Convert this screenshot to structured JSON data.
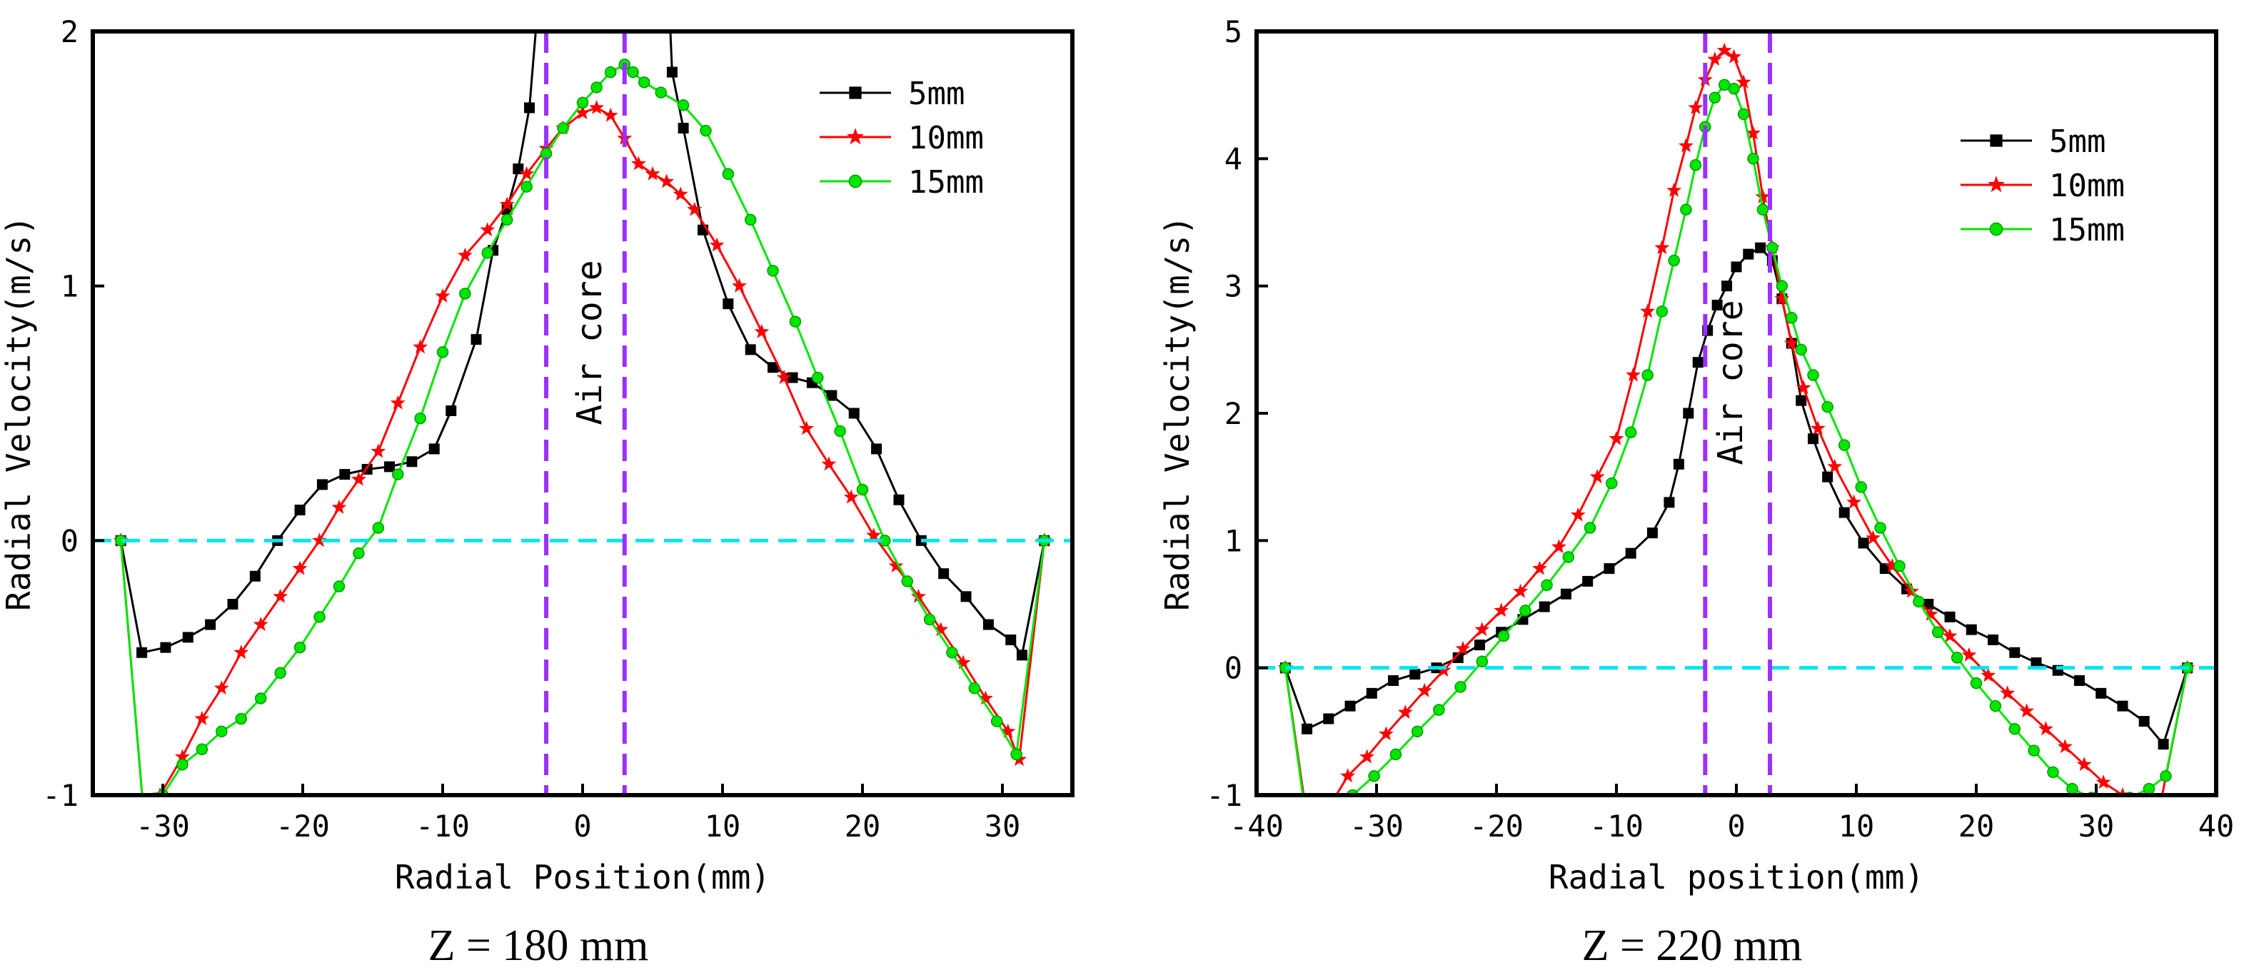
{
  "colors": {
    "series_5mm": "#000000",
    "series_10mm": "#ff0000",
    "series_15mm": "#00e600",
    "zero_line": "#00e5ee",
    "air_core_lines": "#9b30ff"
  },
  "chart_data": [
    {
      "type": "line",
      "caption": "Z = 180 mm",
      "xlabel": "Radial Position(mm)",
      "ylabel": "Radial Velocity(m/s)",
      "xlim": [
        -35,
        35
      ],
      "ylim": [
        -1,
        2
      ],
      "xticks": [
        -30,
        -20,
        -10,
        0,
        10,
        20,
        30
      ],
      "yticks": [
        -1,
        0,
        1,
        2
      ],
      "grid": false,
      "legend_position": "top-right",
      "annotation": "Air core",
      "reference_lines": {
        "zero_y": 0,
        "air_core_x": [
          -2.6,
          3.0
        ]
      },
      "series": [
        {
          "name": "5mm",
          "marker": "square",
          "x": [
            -33,
            -31.5,
            -29.8,
            -28.2,
            -26.6,
            -25,
            -23.4,
            -21.8,
            -20.2,
            -18.6,
            -17,
            -15.4,
            -13.8,
            -12.2,
            -10.6,
            -9.4,
            -7.6,
            -6.4,
            -5.4,
            -4.6,
            -3.8,
            -3.2,
            -2.6,
            5.8,
            6.4,
            7.2,
            8.6,
            10.4,
            12,
            13.6,
            15,
            16.4,
            17.8,
            19.4,
            21,
            22.6,
            24.2,
            25.8,
            27.4,
            29,
            30.6,
            31.4,
            33
          ],
          "y": [
            0,
            -0.44,
            -0.42,
            -0.38,
            -0.33,
            -0.25,
            -0.14,
            0,
            0.12,
            0.22,
            0.26,
            0.28,
            0.29,
            0.31,
            0.36,
            0.51,
            0.79,
            1.14,
            1.3,
            1.46,
            1.7,
            2.1,
            2.6,
            2.6,
            1.84,
            1.62,
            1.22,
            0.93,
            0.75,
            0.68,
            0.64,
            0.62,
            0.57,
            0.5,
            0.36,
            0.16,
            0,
            -0.13,
            -0.22,
            -0.33,
            -0.39,
            -0.45,
            0
          ]
        },
        {
          "name": "10mm",
          "marker": "star",
          "x": [
            -33,
            -31.4,
            -30.2,
            -28.6,
            -27.2,
            -25.8,
            -24.4,
            -23,
            -21.6,
            -20.2,
            -18.8,
            -17.4,
            -16,
            -14.6,
            -13.2,
            -11.6,
            -10,
            -8.4,
            -6.8,
            -5.4,
            -4,
            -2.6,
            -1.4,
            0,
            1,
            2,
            3,
            4,
            5,
            6,
            7,
            8,
            9.6,
            11.2,
            12.8,
            14.4,
            16,
            17.6,
            19.2,
            20.8,
            22.4,
            24,
            25.6,
            27.2,
            28.8,
            30.4,
            31.2,
            33
          ],
          "y": [
            0,
            -1.05,
            -1.0,
            -0.85,
            -0.7,
            -0.58,
            -0.44,
            -0.33,
            -0.22,
            -0.11,
            0,
            0.13,
            0.24,
            0.35,
            0.54,
            0.76,
            0.96,
            1.12,
            1.22,
            1.32,
            1.44,
            1.54,
            1.62,
            1.68,
            1.7,
            1.67,
            1.58,
            1.48,
            1.44,
            1.41,
            1.36,
            1.3,
            1.16,
            1.0,
            0.82,
            0.64,
            0.44,
            0.3,
            0.17,
            0.02,
            -0.1,
            -0.22,
            -0.35,
            -0.48,
            -0.62,
            -0.75,
            -0.86,
            0
          ]
        },
        {
          "name": "15mm",
          "marker": "circle",
          "x": [
            -33,
            -31.4,
            -30,
            -28.6,
            -27.2,
            -25.8,
            -24.4,
            -23,
            -21.6,
            -20.2,
            -18.8,
            -17.4,
            -16,
            -14.6,
            -13.2,
            -11.6,
            -10,
            -8.4,
            -6.8,
            -5.4,
            -4,
            -2.6,
            -1.4,
            0,
            1,
            2,
            3,
            3.6,
            4.4,
            5.6,
            7.2,
            8.8,
            10.4,
            12,
            13.6,
            15.2,
            16.8,
            18.4,
            20,
            21.6,
            23.2,
            24.8,
            26.4,
            28,
            29.6,
            31,
            33
          ],
          "y": [
            0,
            -1.05,
            -1.0,
            -0.88,
            -0.82,
            -0.75,
            -0.7,
            -0.62,
            -0.52,
            -0.42,
            -0.3,
            -0.18,
            -0.05,
            0.05,
            0.26,
            0.48,
            0.74,
            0.97,
            1.13,
            1.26,
            1.39,
            1.52,
            1.62,
            1.72,
            1.78,
            1.84,
            1.87,
            1.84,
            1.8,
            1.76,
            1.71,
            1.61,
            1.44,
            1.26,
            1.06,
            0.86,
            0.64,
            0.43,
            0.2,
            0.0,
            -0.16,
            -0.31,
            -0.44,
            -0.58,
            -0.71,
            -0.84,
            0
          ]
        }
      ]
    },
    {
      "type": "line",
      "caption": "Z = 220 mm",
      "xlabel": "Radial position(mm)",
      "ylabel": "Radial Velocity(m/s)",
      "xlim": [
        -40,
        40
      ],
      "ylim": [
        -1,
        5
      ],
      "xticks": [
        -40,
        -30,
        -20,
        -10,
        0,
        10,
        20,
        30,
        40
      ],
      "yticks": [
        -1,
        0,
        1,
        2,
        3,
        4,
        5
      ],
      "grid": false,
      "legend_position": "top-right",
      "annotation": "Air core",
      "reference_lines": {
        "zero_y": 0,
        "air_core_x": [
          -2.6,
          2.8
        ]
      },
      "series": [
        {
          "name": "5mm",
          "marker": "square",
          "x": [
            -37.6,
            -35.8,
            -34,
            -32.2,
            -30.4,
            -28.6,
            -26.8,
            -25,
            -23.2,
            -21.4,
            -19.6,
            -17.8,
            -16,
            -14.2,
            -12.4,
            -10.6,
            -8.8,
            -7,
            -5.6,
            -4.8,
            -4,
            -3.2,
            -2.4,
            -1.6,
            -0.8,
            0,
            1,
            2,
            3,
            3.8,
            4.6,
            5.4,
            6.4,
            7.6,
            9,
            10.6,
            12.4,
            14.2,
            16,
            17.8,
            19.6,
            21.4,
            23.2,
            25,
            26.8,
            28.6,
            30.4,
            32.2,
            34,
            35.6,
            37.6
          ],
          "y": [
            0,
            -0.48,
            -0.4,
            -0.3,
            -0.2,
            -0.1,
            -0.05,
            0.0,
            0.08,
            0.18,
            0.28,
            0.38,
            0.48,
            0.58,
            0.68,
            0.78,
            0.9,
            1.06,
            1.3,
            1.6,
            2.0,
            2.4,
            2.65,
            2.85,
            3.0,
            3.15,
            3.25,
            3.3,
            3.2,
            2.9,
            2.55,
            2.1,
            1.8,
            1.5,
            1.22,
            0.98,
            0.78,
            0.62,
            0.5,
            0.4,
            0.3,
            0.22,
            0.12,
            0.04,
            -0.02,
            -0.1,
            -0.2,
            -0.3,
            -0.42,
            -0.6,
            0
          ]
        },
        {
          "name": "10mm",
          "marker": "star",
          "x": [
            -37.6,
            -36,
            -34,
            -32.4,
            -30.8,
            -29.2,
            -27.6,
            -26,
            -24.4,
            -22.8,
            -21.2,
            -19.6,
            -18,
            -16.4,
            -14.8,
            -13.2,
            -11.6,
            -10,
            -8.6,
            -7.4,
            -6.2,
            -5.2,
            -4.2,
            -3.4,
            -2.6,
            -1.8,
            -1,
            -0.2,
            0.6,
            1.4,
            2.2,
            3,
            3.8,
            4.6,
            5.6,
            6.8,
            8.2,
            9.8,
            11.4,
            13,
            14.6,
            16.2,
            17.8,
            19.4,
            21,
            22.6,
            24.2,
            25.8,
            27.4,
            29,
            30.6,
            32.2,
            33.8,
            35.4,
            37.6
          ],
          "y": [
            0,
            -1.05,
            -1.1,
            -0.85,
            -0.7,
            -0.52,
            -0.35,
            -0.18,
            -0.02,
            0.15,
            0.3,
            0.45,
            0.6,
            0.78,
            0.95,
            1.2,
            1.5,
            1.8,
            2.3,
            2.8,
            3.3,
            3.75,
            4.1,
            4.4,
            4.62,
            4.78,
            4.85,
            4.8,
            4.6,
            4.2,
            3.7,
            3.3,
            2.9,
            2.55,
            2.2,
            1.88,
            1.58,
            1.3,
            1.02,
            0.8,
            0.6,
            0.42,
            0.25,
            0.1,
            -0.06,
            -0.2,
            -0.34,
            -0.48,
            -0.62,
            -0.76,
            -0.9,
            -1.0,
            -1.04,
            -1.05,
            0
          ]
        },
        {
          "name": "15mm",
          "marker": "circle",
          "x": [
            -37.6,
            -36,
            -34,
            -32,
            -30.2,
            -28.4,
            -26.6,
            -24.8,
            -23,
            -21.2,
            -19.4,
            -17.6,
            -15.8,
            -14,
            -12.2,
            -10.4,
            -8.8,
            -7.4,
            -6.2,
            -5.2,
            -4.2,
            -3.4,
            -2.6,
            -1.8,
            -1,
            -0.2,
            0.6,
            1.4,
            2.2,
            3,
            3.8,
            4.6,
            5.4,
            6.4,
            7.6,
            9,
            10.4,
            12,
            13.6,
            15.2,
            16.8,
            18.4,
            20,
            21.6,
            23.2,
            24.8,
            26.4,
            28,
            29.6,
            31.2,
            32.8,
            34.4,
            35.8,
            37.6
          ],
          "y": [
            0,
            -1.1,
            -1.2,
            -1.0,
            -0.85,
            -0.68,
            -0.5,
            -0.33,
            -0.15,
            0.05,
            0.25,
            0.45,
            0.65,
            0.87,
            1.1,
            1.45,
            1.85,
            2.3,
            2.8,
            3.2,
            3.6,
            3.95,
            4.25,
            4.48,
            4.58,
            4.55,
            4.35,
            4.0,
            3.6,
            3.3,
            3.0,
            2.75,
            2.5,
            2.3,
            2.05,
            1.75,
            1.42,
            1.1,
            0.8,
            0.52,
            0.28,
            0.08,
            -0.12,
            -0.3,
            -0.48,
            -0.65,
            -0.82,
            -0.95,
            -1.02,
            -1.05,
            -1.02,
            -0.95,
            -0.85,
            0
          ]
        }
      ]
    }
  ]
}
